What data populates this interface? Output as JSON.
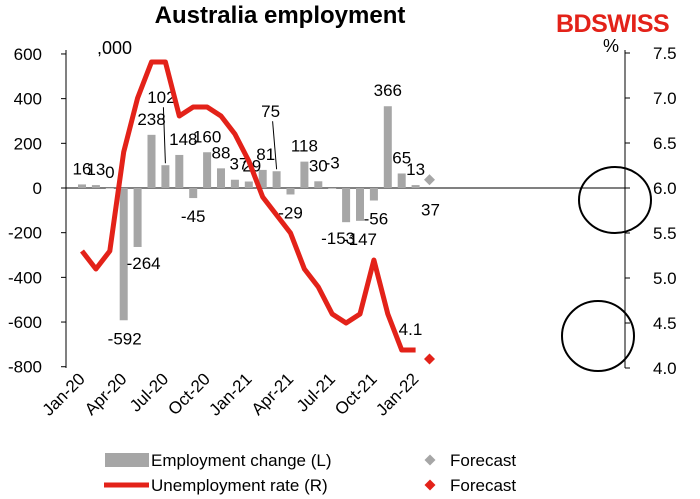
{
  "title": "Australia employment",
  "brand": {
    "bd": "BD",
    "swiss": "SWISS"
  },
  "left_unit": ",000",
  "right_unit": "%",
  "chart_data": {
    "type": "bar+line",
    "title": "Australia employment",
    "x_ticks": [
      "Jan-20",
      "Apr-20",
      "Jul-20",
      "Oct-20",
      "Jan-21",
      "Apr-21",
      "Jul-21",
      "Oct-21",
      "Jan-22"
    ],
    "months": [
      "Jan-20",
      "Feb-20",
      "Mar-20",
      "Apr-20",
      "May-20",
      "Jun-20",
      "Jul-20",
      "Aug-20",
      "Sep-20",
      "Oct-20",
      "Nov-20",
      "Dec-20",
      "Jan-21",
      "Feb-21",
      "Mar-21",
      "Apr-21",
      "May-21",
      "Jun-21",
      "Jul-21",
      "Aug-21",
      "Sep-21",
      "Oct-21",
      "Nov-21",
      "Dec-21",
      "Jan-22"
    ],
    "left_axis": {
      "ticks": [
        600,
        400,
        200,
        0,
        -200,
        -400,
        -600,
        -800
      ],
      "range": [
        -800,
        600
      ]
    },
    "right_axis": {
      "ticks": [
        7.5,
        7.0,
        6.5,
        6.0,
        5.5,
        5.0,
        4.5,
        4.0
      ],
      "range": [
        4.0,
        7.5
      ]
    },
    "series": [
      {
        "name": "Employment change (L)",
        "type": "bar",
        "color": "#a6a6a6",
        "values": [
          16,
          13,
          0,
          -592,
          -264,
          238,
          102,
          148,
          -45,
          160,
          88,
          37,
          29,
          81,
          75,
          -29,
          118,
          30,
          -3,
          -153,
          -147,
          -56,
          366,
          65,
          13
        ],
        "labels": [
          "16",
          "13",
          "0",
          "-592",
          "-264",
          "238",
          "102",
          "148",
          "-45",
          "160",
          "88",
          "37",
          "29",
          "81",
          "75",
          "-29",
          "118",
          "30",
          "-3",
          "-153",
          "-147",
          "-56",
          "366",
          "65",
          "13"
        ]
      },
      {
        "name": "Unemployment rate (R)",
        "type": "line",
        "color": "#e32219",
        "values": [
          5.3,
          5.1,
          5.3,
          6.4,
          7.0,
          7.4,
          7.4,
          6.8,
          6.9,
          6.9,
          6.8,
          6.6,
          6.3,
          5.9,
          5.7,
          5.5,
          5.1,
          4.9,
          4.6,
          4.5,
          4.6,
          5.2,
          4.6,
          4.2,
          4.2
        ]
      },
      {
        "name": "Forecast",
        "type": "point",
        "axis": "left",
        "color": "#a6a6a6",
        "month": "Feb-22",
        "value": 37,
        "label": "37"
      },
      {
        "name": "Forecast",
        "type": "point",
        "axis": "right",
        "color": "#e32219",
        "month": "Feb-22",
        "value": 4.1,
        "label": "4.1"
      }
    ]
  }
}
